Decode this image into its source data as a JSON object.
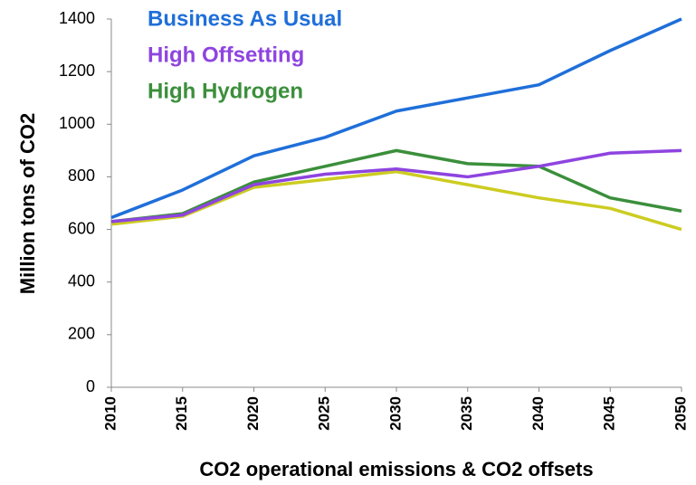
{
  "chart_data": {
    "type": "line",
    "x_label": "CO2 operational emissions & CO2 offsets",
    "y_label": "Million tons of CO2",
    "x": [
      2010,
      2015,
      2020,
      2025,
      2030,
      2035,
      2040,
      2045,
      2050
    ],
    "xlim": [
      2010,
      2050
    ],
    "xticks": [
      2010,
      2015,
      2020,
      2025,
      2030,
      2035,
      2040,
      2045,
      2050
    ],
    "ylim": [
      0,
      1400
    ],
    "yticks": [
      0,
      200,
      400,
      600,
      800,
      1000,
      1200,
      1400
    ],
    "grid": false,
    "legend": "top-left",
    "series": [
      {
        "name": "Business As Usual",
        "color": "#1f6fd9",
        "values": [
          645,
          750,
          880,
          950,
          1050,
          1100,
          1150,
          1280,
          1400
        ]
      },
      {
        "name": "High Offsetting",
        "color": "#8e44e0",
        "values": [
          630,
          655,
          770,
          810,
          830,
          800,
          840,
          890,
          900
        ]
      },
      {
        "name": "High Hydrogen",
        "color": "#3b8f3b",
        "values": [
          630,
          660,
          780,
          840,
          900,
          850,
          840,
          720,
          670
        ]
      },
      {
        "color": "#cccc22",
        "values": [
          620,
          650,
          760,
          790,
          820,
          770,
          720,
          680,
          600
        ]
      }
    ]
  }
}
